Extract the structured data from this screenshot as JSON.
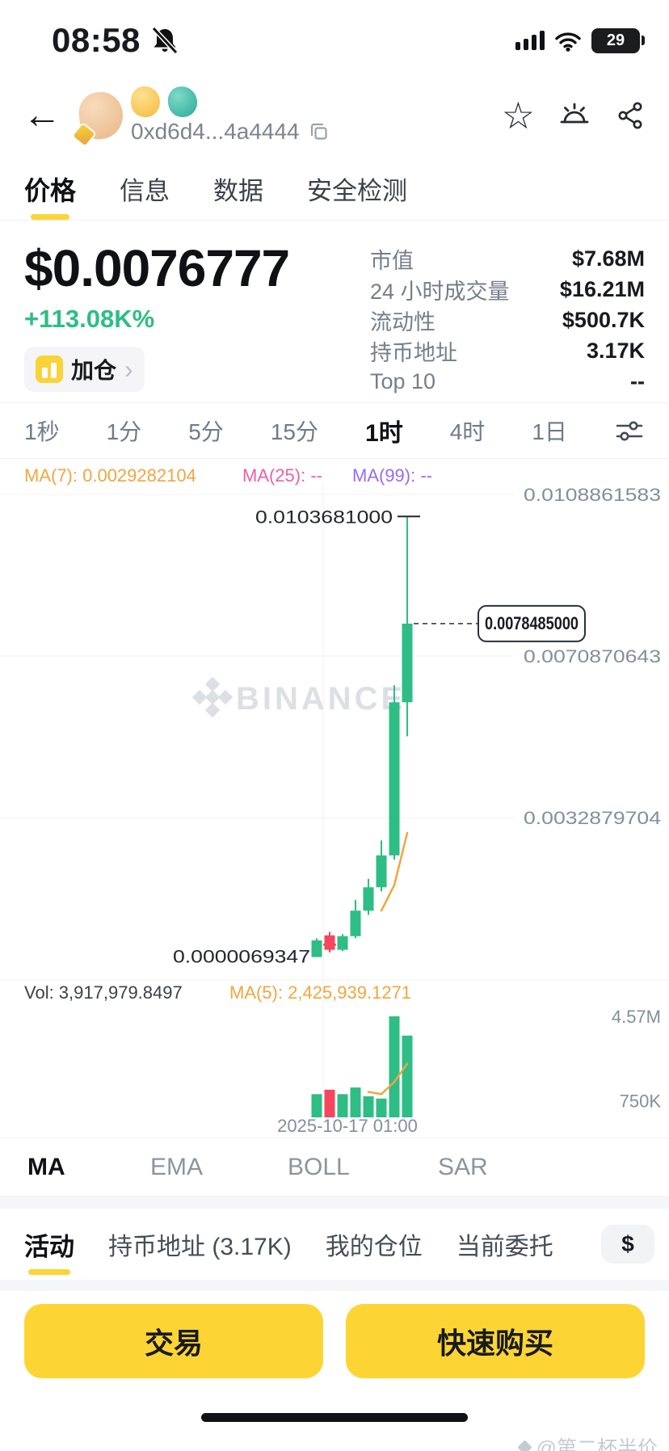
{
  "status_bar": {
    "time": "08:58",
    "battery_percent": "29"
  },
  "header": {
    "address": "0xd6d4...4a4444",
    "token_emojis": [
      {
        "name": "finger-heart-emoji",
        "char": "🫰"
      },
      {
        "name": "pinched-fingers-emoji",
        "char": "🤌"
      },
      {
        "name": "vulcan-salute-emoji",
        "char": "🖖"
      }
    ]
  },
  "nav_tabs": {
    "items": [
      {
        "label": "价格",
        "active": true
      },
      {
        "label": "信息",
        "active": false
      },
      {
        "label": "数据",
        "active": false
      },
      {
        "label": "安全检测",
        "active": false
      }
    ]
  },
  "overview": {
    "price": "$0.0076777",
    "change": "+113.08K%",
    "add_position_label": "加仓",
    "stats": [
      {
        "label": "市值",
        "value": "$7.68M"
      },
      {
        "label": "24 小时成交量",
        "value": "$16.21M"
      },
      {
        "label": "流动性",
        "value": "$500.7K"
      },
      {
        "label": "持币地址",
        "value": "3.17K"
      },
      {
        "label": "Top 10",
        "value": "--"
      }
    ]
  },
  "timeframes": {
    "items": [
      {
        "label": "1秒",
        "active": false
      },
      {
        "label": "1分",
        "active": false
      },
      {
        "label": "5分",
        "active": false
      },
      {
        "label": "15分",
        "active": false
      },
      {
        "label": "1时",
        "active": true
      },
      {
        "label": "4时",
        "active": false
      },
      {
        "label": "1日",
        "active": false
      }
    ]
  },
  "chart_data": {
    "type": "candlestick",
    "interval": "1时",
    "watermark": "BINANCE",
    "overlay_labels": [
      {
        "text": "MA(7): 0.0029282104",
        "color": "#F0A63F"
      },
      {
        "text": "MA(25): --",
        "color": "#EC5FA8"
      },
      {
        "text": "MA(99): --",
        "color": "#9B6BEB"
      }
    ],
    "y_axis_labels": [
      {
        "text": "0.0108861583",
        "price": 0.0108861583
      },
      {
        "text": "0.0070870643",
        "price": 0.0070870643
      },
      {
        "text": "0.0032879704",
        "price": 0.0032879704
      }
    ],
    "high_label": {
      "text": "0.0103681000",
      "price": 0.0103681
    },
    "low_label": {
      "text": "0.0000069347",
      "price": 6.9347e-06
    },
    "last_price": {
      "text": "0.0078485000",
      "price": 0.0078485
    },
    "x_axis_label": "2025-10-17 01:00",
    "colors": {
      "up": "#2EBD85",
      "down": "#F6465D",
      "ma": "#F0A63F",
      "grid": "#F0F1F2",
      "axis_text": "#848E9C"
    },
    "candles": [
      {
        "o": 1e-05,
        "h": 0.00045,
        "l": 6.9e-06,
        "c": 0.0004
      },
      {
        "o": 0.00052,
        "h": 0.0006,
        "l": 0.00012,
        "c": 0.00018
      },
      {
        "o": 0.00018,
        "h": 0.00055,
        "l": 0.00015,
        "c": 0.0005
      },
      {
        "o": 0.0005,
        "h": 0.00135,
        "l": 0.00045,
        "c": 0.0011
      },
      {
        "o": 0.0011,
        "h": 0.00185,
        "l": 0.001,
        "c": 0.00165
      },
      {
        "o": 0.00165,
        "h": 0.00275,
        "l": 0.00155,
        "c": 0.0024
      },
      {
        "o": 0.0024,
        "h": 0.0064,
        "l": 0.0023,
        "c": 0.006
      },
      {
        "o": 0.006,
        "h": 0.0103681,
        "l": 0.0052,
        "c": 0.0078485
      }
    ],
    "ma7": [
      null,
      null,
      null,
      null,
      null,
      0.0011,
      0.0017,
      0.0029282104
    ],
    "trade_marker": {
      "candle_index": 1,
      "price": 0.0003
    },
    "volume": {
      "vol_label": "Vol: 3,917,979.8497",
      "ma_label": "MA(5): 2,425,939.1271",
      "y_axis_labels": [
        {
          "text": "4.57M",
          "value": 4570000
        },
        {
          "text": "750K",
          "value": 750000
        }
      ],
      "bars": [
        {
          "value": 1050000,
          "up": true
        },
        {
          "value": 1250000,
          "up": false
        },
        {
          "value": 1050000,
          "up": true
        },
        {
          "value": 1350000,
          "up": true
        },
        {
          "value": 950000,
          "up": true
        },
        {
          "value": 850000,
          "up": true
        },
        {
          "value": 4570000,
          "up": true
        },
        {
          "value": 3700000,
          "up": true
        }
      ],
      "ma5": [
        null,
        null,
        null,
        null,
        1150000,
        1050000,
        1600000,
        2430000
      ]
    }
  },
  "indicator_tabs": {
    "items": [
      {
        "label": "MA",
        "active": true
      },
      {
        "label": "EMA",
        "active": false
      },
      {
        "label": "BOLL",
        "active": false
      },
      {
        "label": "SAR",
        "active": false
      }
    ]
  },
  "bottom_tabs": {
    "items": [
      {
        "label": "活动",
        "active": true
      },
      {
        "label": "持币地址 (3.17K)",
        "active": false
      },
      {
        "label": "我的仓位",
        "active": false
      },
      {
        "label": "当前委托",
        "active": false
      }
    ],
    "currency_toggle": "$"
  },
  "actions": {
    "trade_label": "交易",
    "quick_buy_label": "快速购买"
  },
  "footer": {
    "watermark": "@第二杯半价"
  }
}
